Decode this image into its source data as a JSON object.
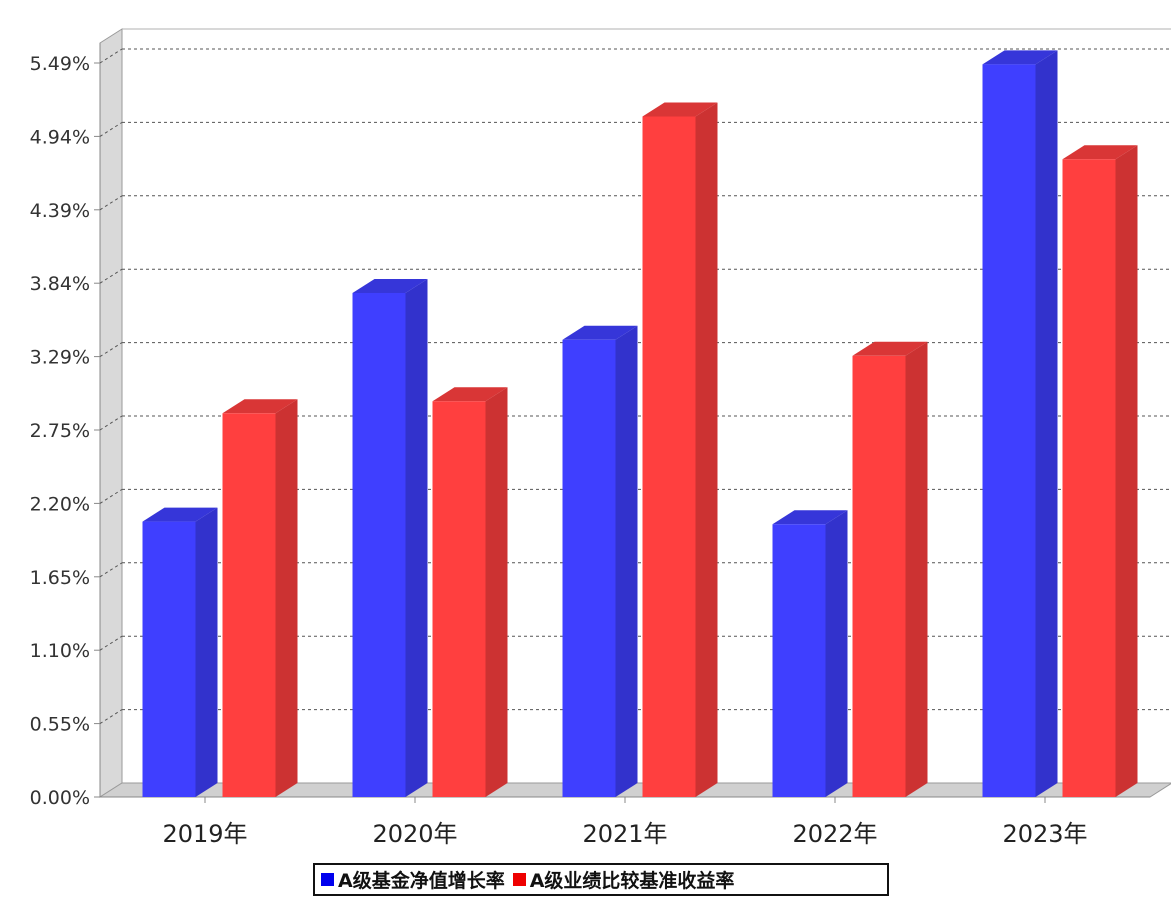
{
  "chart_data": {
    "type": "bar",
    "style": "3d-grouped",
    "categories": [
      "2019年",
      "2020年",
      "2021年",
      "2022年",
      "2023年"
    ],
    "series": [
      {
        "name": "A级基金净值增长率",
        "color": "#3f3fff",
        "values": [
          2.06,
          3.77,
          3.42,
          2.04,
          5.48
        ]
      },
      {
        "name": "A级业绩比较基准收益率",
        "color": "#ff3f3f",
        "values": [
          2.87,
          2.96,
          5.09,
          3.3,
          4.77
        ]
      }
    ],
    "yticks": [
      "0.00%",
      "0.55%",
      "1.10%",
      "1.65%",
      "2.20%",
      "2.75%",
      "3.29%",
      "3.84%",
      "4.39%",
      "4.94%",
      "5.49%"
    ],
    "ylim": [
      0,
      5.49
    ],
    "grid": true,
    "grid_style": "dotted",
    "legend_position": "bottom-center",
    "xlabel": "",
    "ylabel": ""
  }
}
